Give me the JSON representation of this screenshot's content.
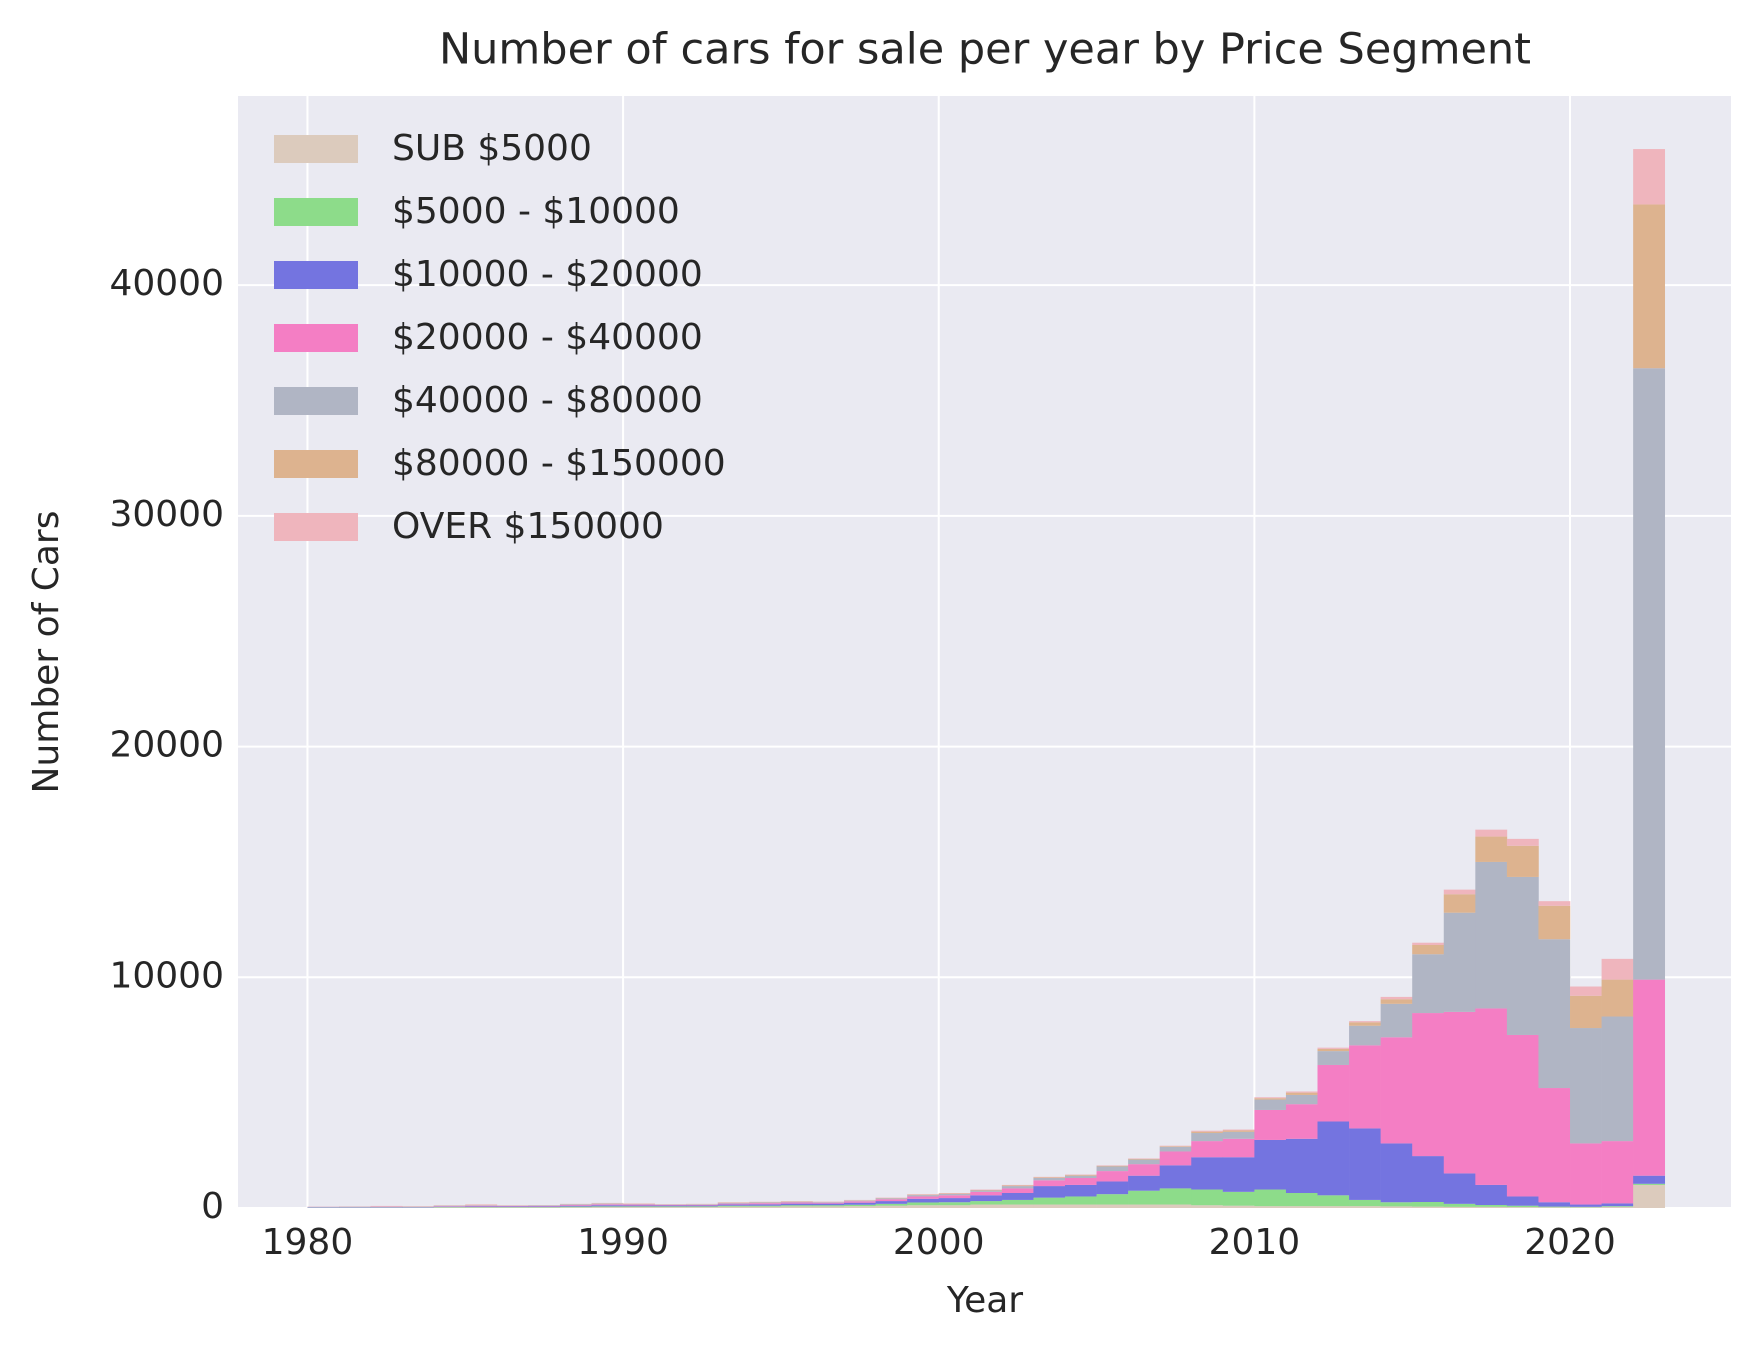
{
  "chart_data": {
    "type": "stacked_histogram",
    "title": "Number of cars for sale per year by Price Segment",
    "x_label": "Year",
    "y_label": "Number of Cars",
    "bins": [
      1980,
      1981,
      1982,
      1983,
      1984,
      1985,
      1986,
      1987,
      1988,
      1989,
      1990,
      1991,
      1992,
      1993,
      1994,
      1995,
      1996,
      1997,
      1998,
      1999,
      2000,
      2001,
      2002,
      2003,
      2004,
      2005,
      2006,
      2007,
      2008,
      2009,
      2010,
      2011,
      2012,
      2013,
      2014,
      2015,
      2016,
      2017,
      2018,
      2019,
      2020,
      2021,
      2022,
      2023
    ],
    "series": [
      {
        "name": "SUB $5000",
        "color": "#dccbbd",
        "values": [
          10,
          10,
          10,
          10,
          20,
          20,
          20,
          20,
          30,
          40,
          40,
          40,
          40,
          60,
          60,
          70,
          70,
          80,
          100,
          120,
          120,
          150,
          150,
          150,
          150,
          150,
          150,
          150,
          120,
          100,
          80,
          80,
          80,
          80,
          70,
          60,
          50,
          50,
          40,
          30,
          30,
          50,
          1000
        ]
      },
      {
        "name": "$5000 - $10000",
        "color": "#8ddc8a",
        "values": [
          10,
          10,
          10,
          10,
          20,
          20,
          20,
          20,
          30,
          30,
          30,
          30,
          30,
          40,
          40,
          50,
          50,
          60,
          80,
          120,
          130,
          150,
          200,
          300,
          350,
          450,
          600,
          700,
          680,
          600,
          720,
          570,
          470,
          270,
          180,
          200,
          130,
          80,
          60,
          30,
          20,
          30,
          50
        ]
      },
      {
        "name": "$10000 - $20000",
        "color": "#7474e0",
        "values": [
          20,
          20,
          20,
          20,
          20,
          30,
          30,
          30,
          40,
          50,
          40,
          40,
          40,
          50,
          60,
          70,
          70,
          90,
          120,
          160,
          180,
          250,
          300,
          500,
          500,
          550,
          650,
          1000,
          1400,
          1500,
          2150,
          2350,
          3200,
          3100,
          2550,
          1990,
          1320,
          870,
          400,
          190,
          100,
          120,
          350
        ]
      },
      {
        "name": "$20000 - $40000",
        "color": "#f47ec4",
        "values": [
          10,
          10,
          20,
          10,
          20,
          30,
          20,
          20,
          30,
          40,
          40,
          30,
          30,
          40,
          50,
          50,
          40,
          60,
          80,
          100,
          120,
          150,
          200,
          250,
          300,
          450,
          500,
          600,
          700,
          800,
          1300,
          1500,
          2450,
          3600,
          4600,
          6200,
          7000,
          7650,
          7000,
          4950,
          2650,
          2700,
          8500
        ]
      },
      {
        "name": "$40000 - $80000",
        "color": "#b0b5c4",
        "values": [
          5,
          10,
          10,
          10,
          20,
          20,
          10,
          20,
          25,
          30,
          20,
          10,
          20,
          30,
          30,
          30,
          25,
          30,
          40,
          60,
          60,
          60,
          100,
          100,
          100,
          200,
          200,
          200,
          350,
          300,
          450,
          400,
          600,
          850,
          1450,
          2550,
          4300,
          6350,
          6850,
          6450,
          5000,
          5400,
          26500
        ]
      },
      {
        "name": "$80000 - $150000",
        "color": "#ddb38f",
        "values": [
          3,
          5,
          10,
          10,
          10,
          20,
          10,
          10,
          10,
          15,
          15,
          10,
          10,
          15,
          15,
          15,
          10,
          15,
          15,
          20,
          20,
          20,
          30,
          30,
          30,
          30,
          30,
          30,
          60,
          60,
          60,
          100,
          100,
          150,
          200,
          400,
          800,
          1100,
          1350,
          1450,
          1400,
          1600,
          7100
        ]
      },
      {
        "name": "OVER $150000",
        "color": "#efb5bd",
        "values": [
          2,
          5,
          10,
          10,
          10,
          20,
          10,
          10,
          15,
          15,
          15,
          10,
          10,
          15,
          15,
          15,
          15,
          15,
          15,
          20,
          20,
          20,
          20,
          20,
          20,
          20,
          20,
          20,
          40,
          40,
          40,
          50,
          50,
          50,
          100,
          100,
          200,
          300,
          300,
          200,
          400,
          900,
          2400
        ]
      }
    ],
    "xlim": [
      1977.8,
      2025.1
    ],
    "ylim": [
      0,
      48200
    ],
    "xticks": [
      1980,
      1990,
      2000,
      2010,
      2020
    ],
    "yticks": [
      0,
      10000,
      20000,
      30000,
      40000
    ],
    "grid": true,
    "legend": "upper left",
    "background": "#eaeaf2"
  }
}
